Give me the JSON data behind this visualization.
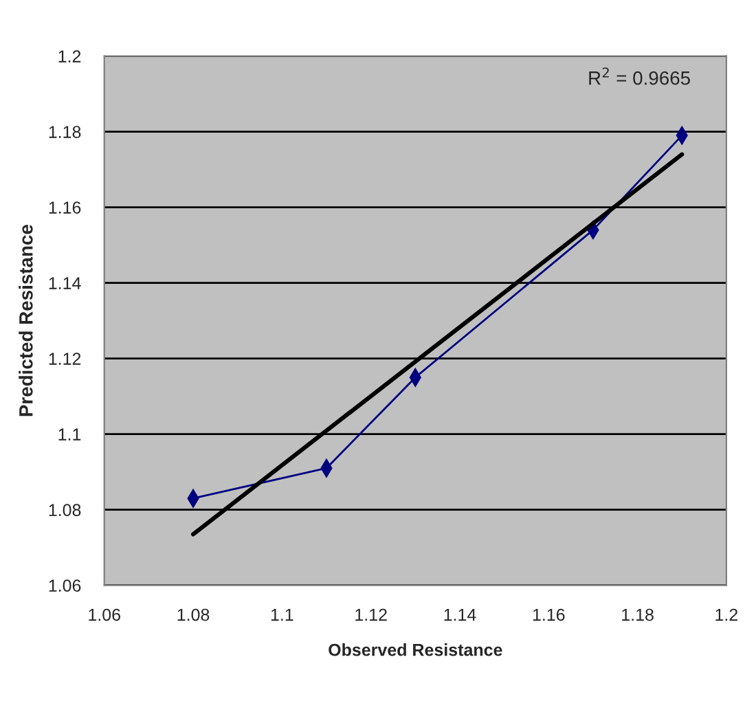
{
  "chart_data": {
    "type": "line",
    "xlabel": "Observed Resistance",
    "ylabel": "Predicted Resistance",
    "annotations": [
      "R$^{2}$ = 0.9665"
    ],
    "series": [
      {
        "color": "#000080",
        "marker": "diamond",
        "x": [
          1.08,
          1.11,
          1.13,
          1.17,
          1.19
        ],
        "values": [
          1.083,
          1.091,
          1.115,
          1.154,
          1.179
        ]
      },
      {
        "type": "line",
        "color": "#000000",
        "marker": "none",
        "x": [
          1.08,
          1.19
        ],
        "values": [
          1.0735,
          1.174
        ]
      }
    ],
    "xlim": [
      1.06,
      1.2
    ],
    "xticks": [
      1.06,
      1.08,
      1.1,
      1.12,
      1.14,
      1.16,
      1.18,
      1.2
    ],
    "ylim": [
      1.06,
      1.2
    ],
    "yticks": [
      1.06,
      1.08,
      1.1,
      1.12,
      1.14,
      1.16,
      1.18,
      1.2
    ],
    "grid": "y",
    "legend": false
  }
}
